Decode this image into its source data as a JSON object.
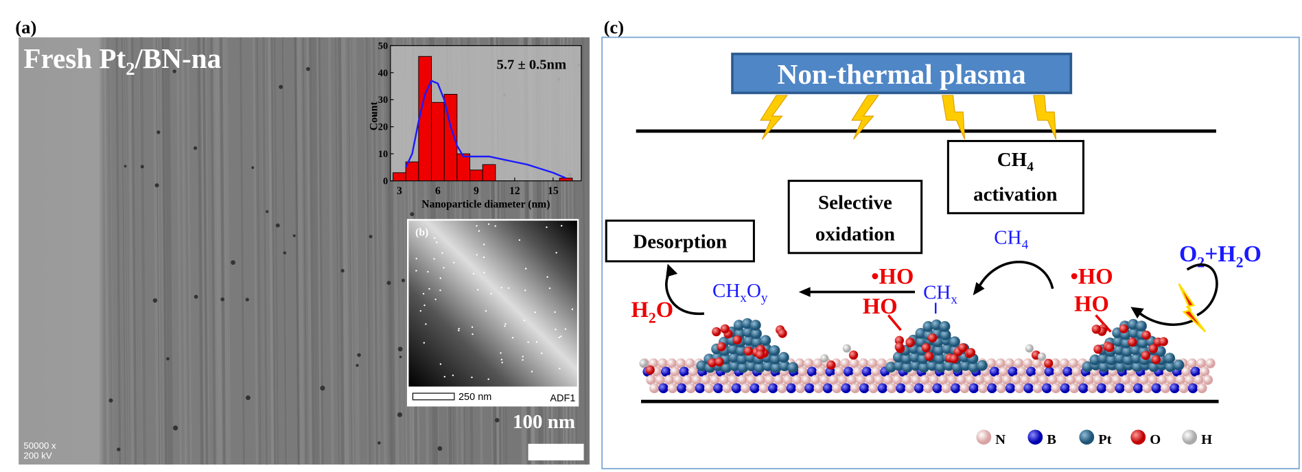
{
  "panel_a": {
    "label": "(a)",
    "title": [
      "Fresh Pt",
      "2",
      "/BN-na"
    ],
    "magnification": "50000 x",
    "voltage": "200 kV",
    "scale_bar": "100 nm",
    "histogram": {
      "type": "histogram",
      "annotation": "5.7 ± 0.5nm",
      "ylabel": "Count",
      "xlabel": "Nanoparticle diameter (nm)",
      "bins": [
        2.5,
        3.5,
        4.5,
        5.5,
        6.5,
        7.5,
        8.5,
        9.5,
        10.5,
        11.5,
        12.5,
        13.5,
        14.5,
        15.5,
        16.5
      ],
      "counts": [
        3,
        7,
        46,
        29,
        32,
        10,
        4,
        6,
        0,
        0,
        0,
        0,
        0,
        1
      ],
      "color": "#ee0000",
      "fit": {
        "color": "#1a1aff",
        "x": [
          3.5,
          4,
          4.5,
          5,
          5.5,
          6,
          6.5,
          7,
          7.5,
          8,
          9,
          10,
          11,
          12,
          13,
          14,
          15,
          16
        ],
        "y": [
          5,
          10,
          22,
          32,
          37,
          36,
          30,
          20,
          13,
          9,
          9,
          9,
          8,
          7,
          6,
          4.5,
          3,
          1
        ]
      },
      "xlim": [
        2.3,
        17.2
      ],
      "ylim": [
        0,
        50
      ],
      "xticks": [
        3,
        6,
        9,
        12,
        15
      ],
      "yticks": [
        0,
        10,
        20,
        30,
        40,
        50
      ]
    },
    "inset_b": {
      "label": "(b)",
      "scale_bar": "250 nm",
      "detector": "ADF1"
    }
  },
  "panel_c": {
    "label": "(c)",
    "plasma": "Non-thermal plasma",
    "activation_box": [
      "CH",
      "4",
      "activation"
    ],
    "oxidation_box": [
      "Selective",
      "oxidation"
    ],
    "desorption_box": "Desorption",
    "ch4": [
      "CH",
      "4"
    ],
    "reactants": [
      "O",
      "2",
      "+H",
      "2",
      "O"
    ],
    "radical": "•HO",
    "hydroxyl": "HO",
    "chx": [
      "CH",
      "x"
    ],
    "chxoy": [
      "CH",
      "x",
      "O",
      "y"
    ],
    "water": [
      "H",
      "2",
      "O"
    ],
    "legend": [
      "N",
      "B",
      "Pt",
      "O",
      "H"
    ]
  }
}
